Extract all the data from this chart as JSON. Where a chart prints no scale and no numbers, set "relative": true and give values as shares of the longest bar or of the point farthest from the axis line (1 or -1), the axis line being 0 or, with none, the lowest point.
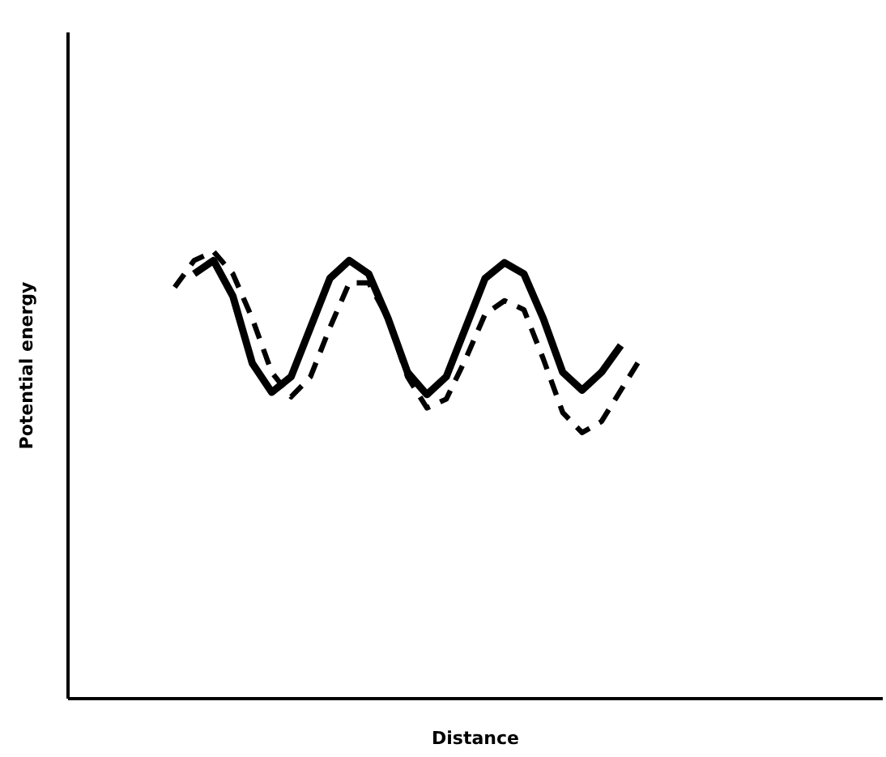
{
  "chart_data": {
    "type": "line",
    "xlabel": "Distance",
    "ylabel": "Potential energy",
    "relative": true,
    "categories": [
      null,
      null,
      null,
      null,
      null,
      null,
      null,
      null,
      null,
      null,
      null,
      null,
      null,
      null,
      null,
      null,
      null,
      null,
      null,
      null,
      null,
      null,
      null,
      null,
      null,
      null,
      null,
      null,
      null,
      null,
      null,
      null,
      null,
      null,
      null,
      null,
      null,
      null,
      null,
      null,
      null,
      null
    ],
    "series": [
      {
        "color": "#000000",
        "line_style": "solid",
        "values": [
          null,
          null,
          null,
          null,
          null,
          null,
          0.95,
          0.98,
          0.9,
          0.75,
          0.685,
          0.72,
          0.83,
          0.94,
          0.98,
          0.95,
          0.85,
          0.73,
          0.68,
          0.72,
          0.83,
          0.94,
          0.975,
          0.95,
          0.85,
          0.73,
          0.69,
          0.73,
          0.79,
          null,
          null,
          null,
          null,
          null,
          null,
          null,
          null,
          null,
          null,
          null,
          null,
          null
        ]
      },
      {
        "color": "#000000",
        "line_style": "dashed",
        "values": [
          null,
          null,
          null,
          null,
          null,
          0.92,
          0.98,
          1.0,
          0.95,
          0.85,
          0.73,
          0.675,
          0.72,
          0.83,
          0.93,
          0.93,
          0.85,
          0.72,
          0.65,
          0.67,
          0.76,
          0.86,
          0.89,
          0.87,
          0.76,
          0.64,
          0.595,
          0.62,
          0.69,
          0.76,
          null,
          null,
          null,
          null,
          null,
          null,
          null,
          null,
          null,
          null,
          null,
          null
        ]
      }
    ]
  }
}
